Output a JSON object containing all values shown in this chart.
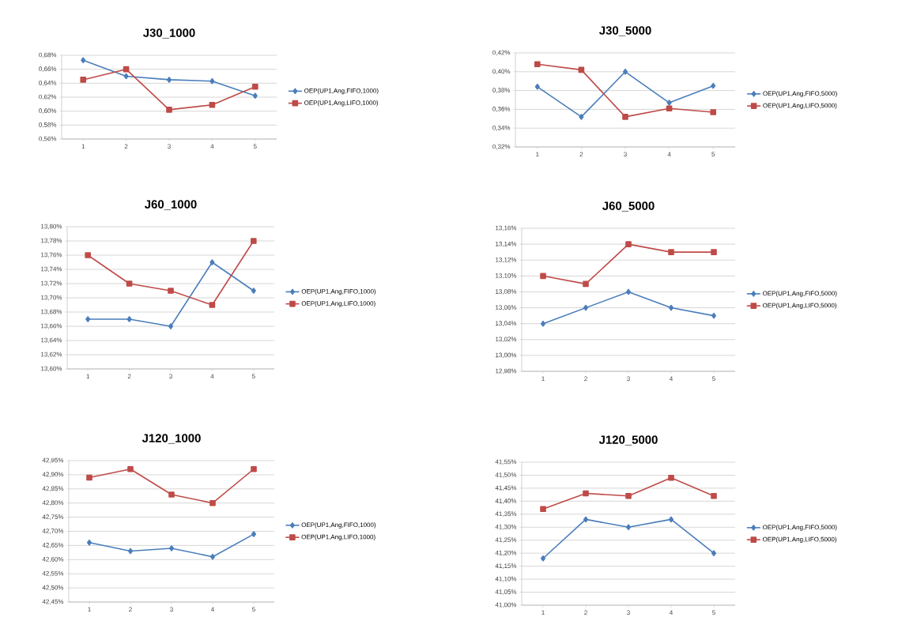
{
  "chart_data": [
    {
      "type": "line",
      "title": "J30_1000",
      "categories": [
        "1",
        "2",
        "3",
        "4",
        "5"
      ],
      "ylim": [
        0.56,
        0.68
      ],
      "yticks": [
        {
          "value": 0.56,
          "label": "0,56%"
        },
        {
          "value": 0.58,
          "label": "0,58%"
        },
        {
          "value": 0.6,
          "label": "0,60%"
        },
        {
          "value": 0.62,
          "label": "0,62%"
        },
        {
          "value": 0.64,
          "label": "0,64%"
        },
        {
          "value": 0.66,
          "label": "0,66%"
        },
        {
          "value": 0.68,
          "label": "0,68%"
        }
      ],
      "grid": "y",
      "legend": "right",
      "series": [
        {
          "name": "OEP(UP1,Ang,FIFO,1000)",
          "color": "#4a7ebb",
          "marker": "diamond",
          "values": [
            0.673,
            0.65,
            0.645,
            0.643,
            0.622
          ]
        },
        {
          "name": "OEP(UP1,Ang,LIFO,1000)",
          "color": "#be4b48",
          "marker": "square",
          "values": [
            0.645,
            0.66,
            0.602,
            0.609,
            0.635
          ]
        }
      ]
    },
    {
      "type": "line",
      "title": "J30_5000",
      "categories": [
        "1",
        "2",
        "3",
        "4",
        "5"
      ],
      "ylim": [
        0.32,
        0.42
      ],
      "yticks": [
        {
          "value": 0.32,
          "label": "0,32%"
        },
        {
          "value": 0.34,
          "label": "0,34%"
        },
        {
          "value": 0.36,
          "label": "0,36%"
        },
        {
          "value": 0.38,
          "label": "0,38%"
        },
        {
          "value": 0.4,
          "label": "0,40%"
        },
        {
          "value": 0.42,
          "label": "0,42%"
        }
      ],
      "grid": "y",
      "legend": "right",
      "series": [
        {
          "name": "OEP(UP1,Ang,FIFO,5000)",
          "color": "#4a7ebb",
          "marker": "diamond",
          "values": [
            0.384,
            0.352,
            0.4,
            0.367,
            0.385
          ]
        },
        {
          "name": "OEP(UP1,Ang,LIFO,5000)",
          "color": "#be4b48",
          "marker": "square",
          "values": [
            0.408,
            0.402,
            0.352,
            0.361,
            0.357
          ]
        }
      ]
    },
    {
      "type": "line",
      "title": "J60_1000",
      "categories": [
        "1",
        "2",
        "3",
        "4",
        "5"
      ],
      "ylim": [
        13.6,
        13.8
      ],
      "yticks": [
        {
          "value": 13.6,
          "label": "13,60%"
        },
        {
          "value": 13.62,
          "label": "13,62%"
        },
        {
          "value": 13.64,
          "label": "13,64%"
        },
        {
          "value": 13.66,
          "label": "13,66%"
        },
        {
          "value": 13.68,
          "label": "13,68%"
        },
        {
          "value": 13.7,
          "label": "13,70%"
        },
        {
          "value": 13.72,
          "label": "13,72%"
        },
        {
          "value": 13.74,
          "label": "13,74%"
        },
        {
          "value": 13.76,
          "label": "13,76%"
        },
        {
          "value": 13.78,
          "label": "13,78%"
        },
        {
          "value": 13.8,
          "label": "13,80%"
        }
      ],
      "grid": "y",
      "legend": "right",
      "series": [
        {
          "name": "OEP(UP1,Ang,FIFO,1000)",
          "color": "#4a7ebb",
          "marker": "diamond",
          "values": [
            13.67,
            13.67,
            13.66,
            13.75,
            13.71
          ]
        },
        {
          "name": "OEP(UP1,Ang,LIFO,1000)",
          "color": "#be4b48",
          "marker": "square",
          "values": [
            13.76,
            13.72,
            13.71,
            13.69,
            13.78
          ]
        }
      ]
    },
    {
      "type": "line",
      "title": "J60_5000",
      "categories": [
        "1",
        "2",
        "3",
        "4",
        "5"
      ],
      "ylim": [
        12.98,
        13.16
      ],
      "yticks": [
        {
          "value": 12.98,
          "label": "12,98%"
        },
        {
          "value": 13.0,
          "label": "13,00%"
        },
        {
          "value": 13.02,
          "label": "13,02%"
        },
        {
          "value": 13.04,
          "label": "13,04%"
        },
        {
          "value": 13.06,
          "label": "13,06%"
        },
        {
          "value": 13.08,
          "label": "13,08%"
        },
        {
          "value": 13.1,
          "label": "13,10%"
        },
        {
          "value": 13.12,
          "label": "13,12%"
        },
        {
          "value": 13.14,
          "label": "13,14%"
        },
        {
          "value": 13.16,
          "label": "13,16%"
        }
      ],
      "grid": "y",
      "legend": "right",
      "series": [
        {
          "name": "OEP(UP1,Ang,FIFO,5000)",
          "color": "#4a7ebb",
          "marker": "diamond",
          "values": [
            13.04,
            13.06,
            13.08,
            13.06,
            13.05
          ]
        },
        {
          "name": "OEP(UP1,Ang,LIFO,5000)",
          "color": "#be4b48",
          "marker": "square",
          "values": [
            13.1,
            13.09,
            13.14,
            13.13,
            13.13
          ]
        }
      ]
    },
    {
      "type": "line",
      "title": "J120_1000",
      "categories": [
        "1",
        "2",
        "3",
        "4",
        "5"
      ],
      "ylim": [
        42.45,
        42.95
      ],
      "yticks": [
        {
          "value": 42.45,
          "label": "42,45%"
        },
        {
          "value": 42.5,
          "label": "42,50%"
        },
        {
          "value": 42.55,
          "label": "42,55%"
        },
        {
          "value": 42.6,
          "label": "42,60%"
        },
        {
          "value": 42.65,
          "label": "42,65%"
        },
        {
          "value": 42.7,
          "label": "42,70%"
        },
        {
          "value": 42.75,
          "label": "42,75%"
        },
        {
          "value": 42.8,
          "label": "42,80%"
        },
        {
          "value": 42.85,
          "label": "42,85%"
        },
        {
          "value": 42.9,
          "label": "42,90%"
        },
        {
          "value": 42.95,
          "label": "42,95%"
        }
      ],
      "grid": "y",
      "legend": "right",
      "series": [
        {
          "name": "OEP(UP1,Ang,FIFO,1000)",
          "color": "#4a7ebb",
          "marker": "diamond",
          "values": [
            42.66,
            42.63,
            42.64,
            42.61,
            42.69
          ]
        },
        {
          "name": "OEP(UP1,Ang,LIFO,1000)",
          "color": "#be4b48",
          "marker": "square",
          "values": [
            42.89,
            42.92,
            42.83,
            42.8,
            42.92
          ]
        }
      ]
    },
    {
      "type": "line",
      "title": "J120_5000",
      "categories": [
        "1",
        "2",
        "3",
        "4",
        "5"
      ],
      "ylim": [
        41.0,
        41.55
      ],
      "yticks": [
        {
          "value": 41.0,
          "label": "41,00%"
        },
        {
          "value": 41.05,
          "label": "41,05%"
        },
        {
          "value": 41.1,
          "label": "41,10%"
        },
        {
          "value": 41.15,
          "label": "41,15%"
        },
        {
          "value": 41.2,
          "label": "41,20%"
        },
        {
          "value": 41.25,
          "label": "41,25%"
        },
        {
          "value": 41.3,
          "label": "41,30%"
        },
        {
          "value": 41.35,
          "label": "41,35%"
        },
        {
          "value": 41.4,
          "label": "41,40%"
        },
        {
          "value": 41.45,
          "label": "41,45%"
        },
        {
          "value": 41.5,
          "label": "41,50%"
        },
        {
          "value": 41.55,
          "label": "41,55%"
        }
      ],
      "grid": "y",
      "legend": "right",
      "series": [
        {
          "name": "OEP(UP1,Ang,FIFO,5000)",
          "color": "#4a7ebb",
          "marker": "diamond",
          "values": [
            41.18,
            41.33,
            41.3,
            41.33,
            41.2
          ]
        },
        {
          "name": "OEP(UP1,Ang,LIFO,5000)",
          "color": "#be4b48",
          "marker": "square",
          "values": [
            41.37,
            41.43,
            41.42,
            41.49,
            41.42
          ]
        }
      ]
    }
  ]
}
